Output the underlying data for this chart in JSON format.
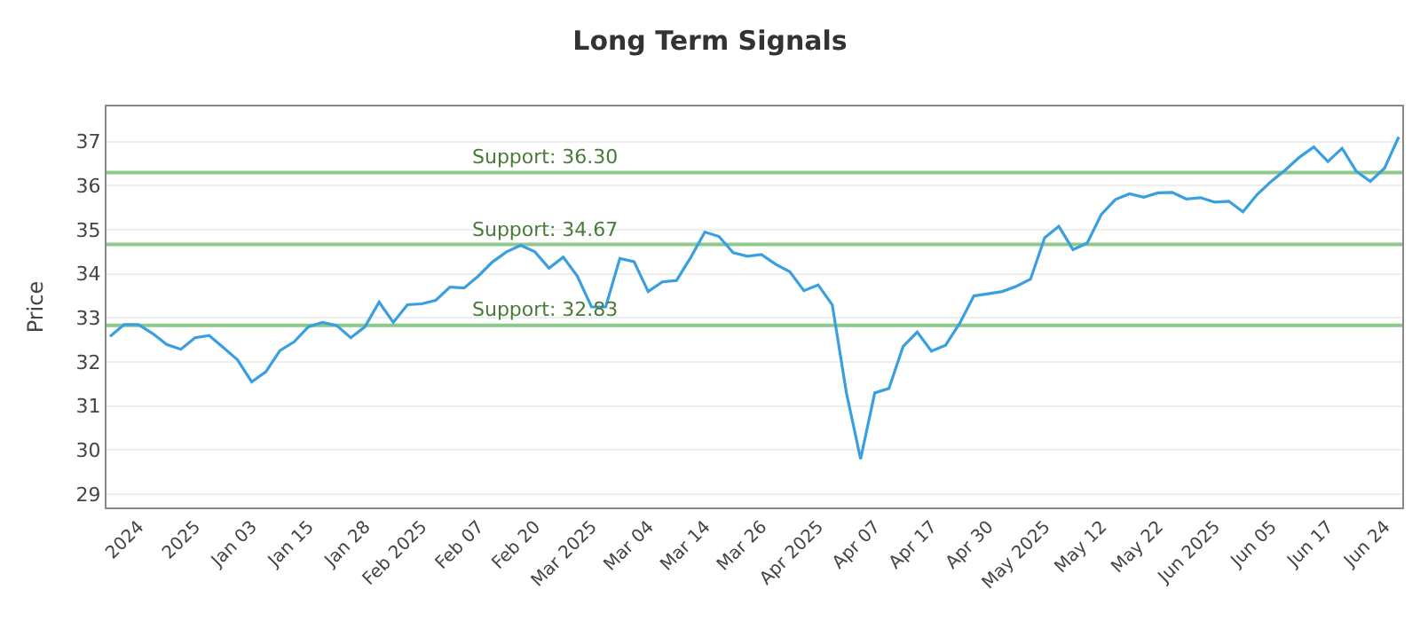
{
  "chart_data": {
    "type": "line",
    "title": "Long Term Signals",
    "ylabel": "Price",
    "categories": [
      null,
      null,
      "2024",
      null,
      null,
      null,
      "2025",
      null,
      null,
      null,
      "Jan 03",
      null,
      null,
      null,
      "Jan 15",
      null,
      null,
      null,
      "Jan 28",
      null,
      null,
      null,
      "Feb 2025",
      null,
      null,
      null,
      "Feb 07",
      null,
      null,
      null,
      "Feb 20",
      null,
      null,
      null,
      "Mar 2025",
      null,
      null,
      null,
      "Mar 04",
      null,
      null,
      null,
      "Mar 14",
      null,
      null,
      null,
      "Mar 26",
      null,
      null,
      null,
      "Apr 2025",
      null,
      null,
      null,
      "Apr 07",
      null,
      null,
      null,
      "Apr 17",
      null,
      null,
      null,
      "Apr 30",
      null,
      null,
      null,
      "May 2025",
      null,
      null,
      null,
      "May 12",
      null,
      null,
      null,
      "May 22",
      null,
      null,
      null,
      "Jun 2025",
      null,
      null,
      null,
      "Jun 05",
      null,
      null,
      null,
      "Jun 17",
      null,
      null,
      null,
      "Jun 24",
      null
    ],
    "series": [
      {
        "color": "#3a9fe0",
        "values": [
          32.58,
          32.85,
          32.85,
          32.65,
          32.4,
          32.29,
          32.55,
          32.6,
          32.33,
          32.05,
          31.55,
          31.78,
          32.26,
          32.46,
          32.8,
          32.9,
          32.83,
          32.55,
          32.8,
          33.36,
          32.9,
          33.3,
          33.32,
          33.4,
          33.7,
          33.68,
          33.95,
          34.27,
          34.5,
          34.65,
          34.5,
          34.13,
          34.38,
          33.95,
          33.25,
          33.25,
          34.35,
          34.28,
          33.6,
          33.82,
          33.85,
          34.37,
          34.95,
          34.85,
          34.48,
          34.4,
          34.44,
          34.22,
          34.05,
          33.62,
          33.75,
          33.3,
          31.3,
          29.8,
          31.3,
          31.4,
          32.35,
          32.68,
          32.25,
          32.38,
          32.88,
          33.5,
          33.55,
          33.6,
          33.72,
          33.88,
          34.82,
          35.08,
          34.55,
          34.7,
          35.35,
          35.69,
          35.82,
          35.74,
          35.84,
          35.85,
          35.7,
          35.73,
          35.63,
          35.65,
          35.41,
          35.8,
          36.1,
          36.36,
          36.65,
          36.88,
          36.55,
          36.85,
          36.33,
          36.1,
          36.4,
          37.11
        ]
      }
    ],
    "ylim": [
      28.7,
      37.8
    ],
    "yticks": [
      29,
      30,
      31,
      32,
      33,
      34,
      35,
      36,
      37
    ],
    "ref_lines": [
      {
        "axis": "y",
        "value": 36.3,
        "label": "Support: 36.30",
        "color": "#8dc98a"
      },
      {
        "axis": "y",
        "value": 34.67,
        "label": "Support: 34.67",
        "color": "#8dc98a"
      },
      {
        "axis": "y",
        "value": 32.83,
        "label": "Support: 32.83",
        "color": "#8dc98a"
      }
    ],
    "grid": "y",
    "marker": "none",
    "line_style": "solid"
  }
}
